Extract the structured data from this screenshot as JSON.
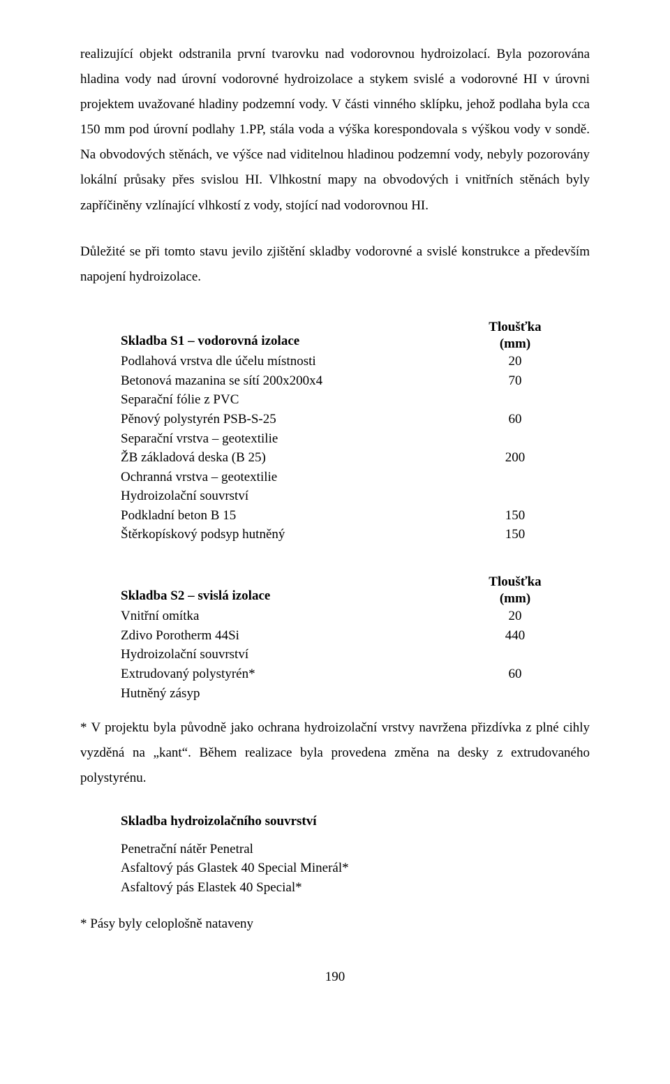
{
  "para1": "realizující objekt odstranila první tvarovku nad vodorovnou hydroizolací. Byla pozorována hladina vody nad úrovní vodorovné hydroizolace a stykem svislé a vodorovné HI v úrovni projektem uvažované hladiny podzemní vody. V části vinného sklípku, jehož podlaha byla cca 150 mm pod úrovní podlahy 1.PP, stála voda a výška korespondovala s výškou vody v sondě. Na obvodových stěnách, ve výšce nad viditelnou hladinou podzemní vody, nebyly pozorovány lokální průsaky přes svislou HI. Vlhkostní mapy na obvodových i vnitřních stěnách byly zapříčiněny vzlínající vlhkostí z vody, stojící nad vodorovnou HI.",
  "para2": "Důležité se při tomto stavu jevilo zjištění skladby vodorovné a svislé konstrukce a především napojení hydroizolace.",
  "tables": {
    "s1": {
      "title": "Skladba S1 – vodorovná izolace",
      "thick_line1": "Tloušťka",
      "thick_line2": "(mm)",
      "rows": [
        {
          "label": "Podlahová vrstva dle účelu místnosti",
          "val": "20"
        },
        {
          "label": "Betonová mazanina se sítí 200x200x4",
          "val": "70"
        },
        {
          "label": "Separační fólie z PVC",
          "val": ""
        },
        {
          "label": "Pěnový polystyrén PSB-S-25",
          "val": "60"
        },
        {
          "label": "Separační vrstva – geotextilie",
          "val": ""
        },
        {
          "label": "ŽB základová deska (B 25)",
          "val": "200"
        },
        {
          "label": "Ochranná vrstva – geotextilie",
          "val": ""
        },
        {
          "label": "Hydroizolační souvrství",
          "val": ""
        },
        {
          "label": "Podkladní beton B 15",
          "val": "150"
        },
        {
          "label": "Štěrkopískový podsyp hutněný",
          "val": "150"
        }
      ]
    },
    "s2": {
      "title": "Skladba S2 – svislá izolace",
      "thick_line1": "Tloušťka",
      "thick_line2": "(mm)",
      "rows": [
        {
          "label": "Vnitřní omítka",
          "val": "20"
        },
        {
          "label": "Zdivo Porotherm 44Si",
          "val": "440"
        },
        {
          "label": "Hydroizolační souvrství",
          "val": ""
        },
        {
          "label": "Extrudovaný polystyrén*",
          "val": "60"
        },
        {
          "label": "Hutněný zásyp",
          "val": ""
        }
      ]
    },
    "s3": {
      "title": "Skladba hydroizolačního souvrství",
      "rows": [
        {
          "label": "Penetrační nátěr Penetral"
        },
        {
          "label": "Asfaltový pás Glastek 40 Special Minerál*"
        },
        {
          "label": "Asfaltový pás Elastek 40 Special*"
        }
      ]
    }
  },
  "footnote1": "* V projektu byla původně jako ochrana hydroizolační vrstvy navržena přizdívka z plné cihly vyzděná na „kant“. Během realizace byla provedena změna na desky z extrudovaného polystyrénu.",
  "footnote2": "* Pásy byly celoplošně nataveny",
  "page_number": "190"
}
